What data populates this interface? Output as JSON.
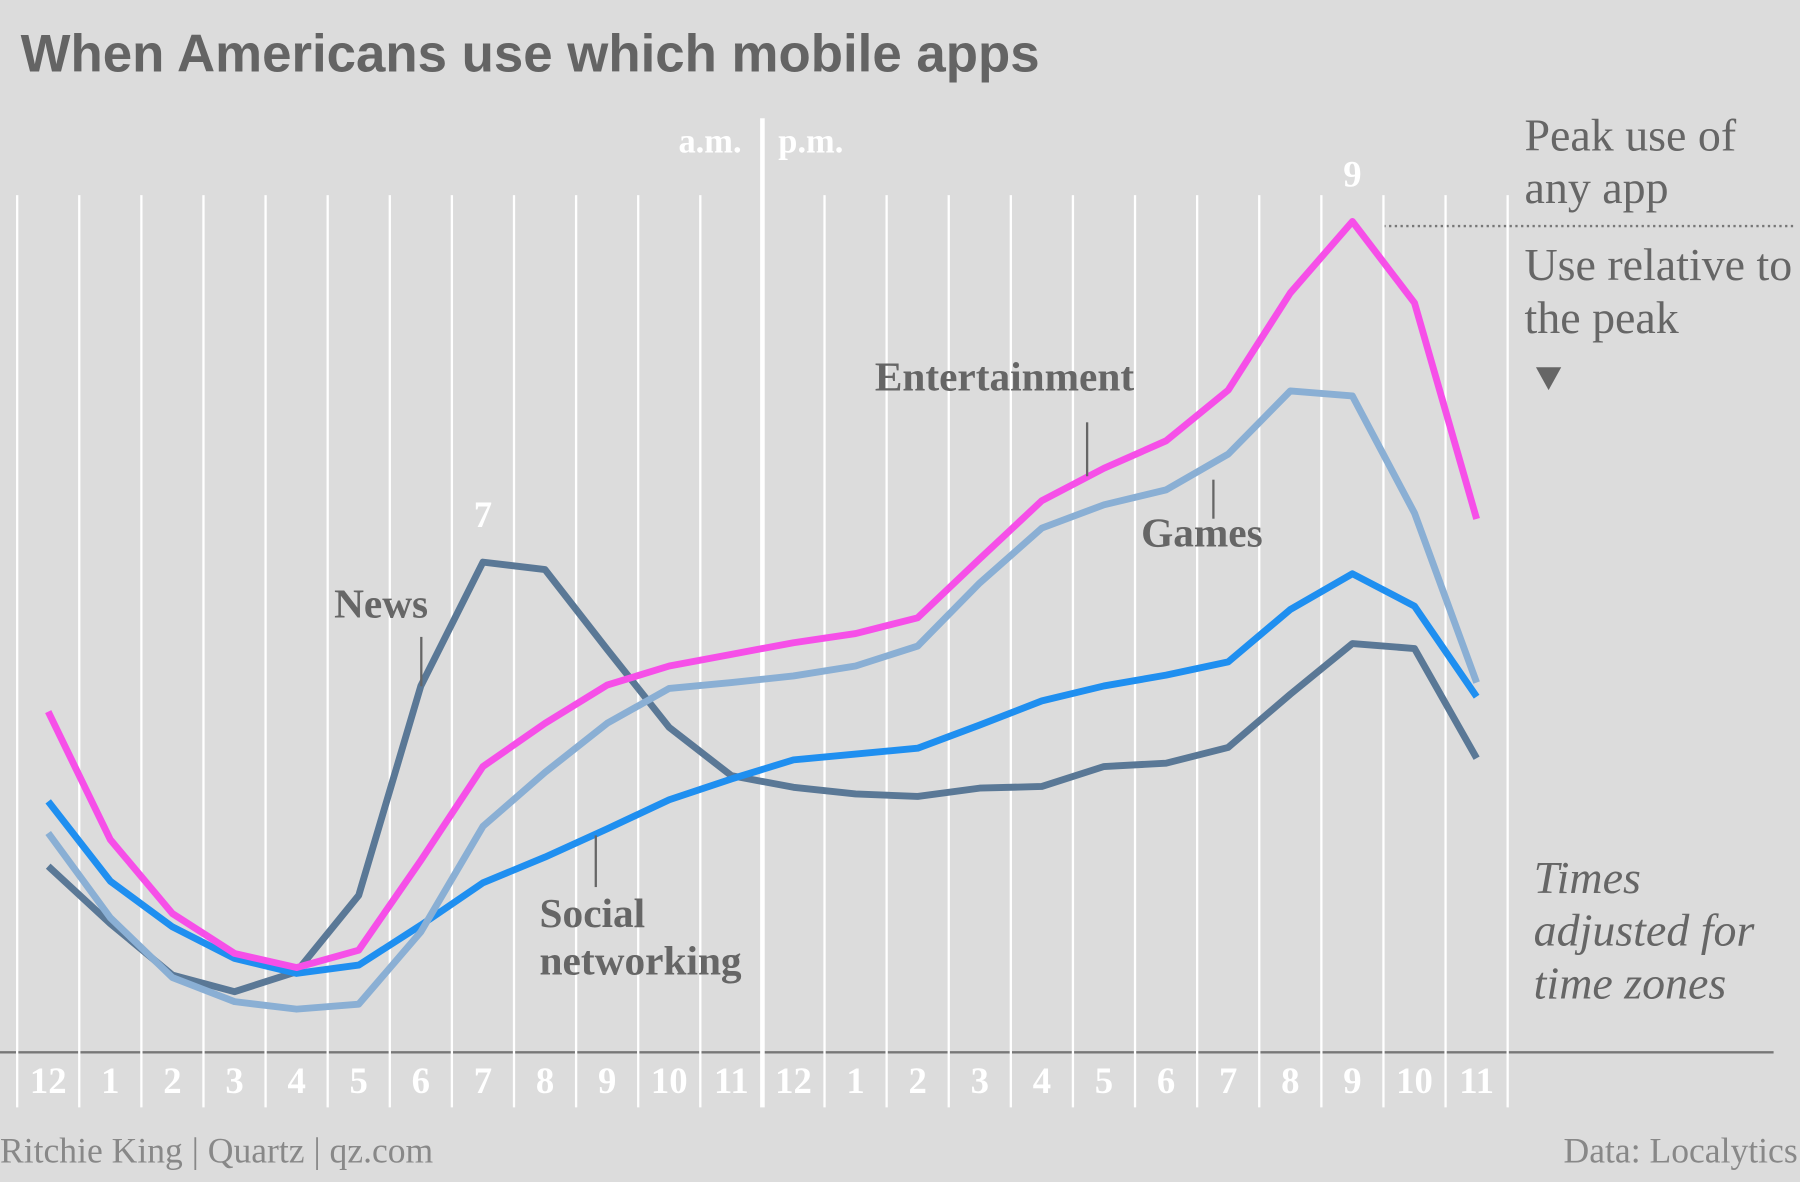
{
  "chart_data": {
    "type": "line",
    "title": "When Americans use which mobile apps",
    "am_label": "a.m.",
    "pm_label": "p.m.",
    "categories": [
      "12",
      "1",
      "2",
      "3",
      "4",
      "5",
      "6",
      "7",
      "8",
      "9",
      "10",
      "11",
      "12",
      "1",
      "2",
      "3",
      "4",
      "5",
      "6",
      "7",
      "8",
      "9",
      "10",
      "11"
    ],
    "ylim": [
      0,
      100
    ],
    "series": [
      {
        "name": "Entertainment",
        "color": "#f64fe8",
        "values": [
          41.0,
          25.6,
          16.7,
          11.9,
          10.2,
          12.3,
          23.1,
          34.4,
          39.6,
          44.2,
          46.5,
          47.9,
          49.3,
          50.4,
          52.3,
          59.4,
          66.4,
          70.3,
          73.6,
          79.7,
          91.4,
          100,
          90.2,
          64.2
        ],
        "peak_label": "9"
      },
      {
        "name": "Games",
        "color": "#8aafd4",
        "values": [
          26.4,
          16.2,
          9.0,
          6.1,
          5.2,
          5.8,
          14.5,
          27.2,
          33.7,
          39.6,
          43.8,
          44.5,
          45.3,
          46.5,
          48.9,
          56.5,
          63.1,
          65.9,
          67.7,
          72.0,
          79.6,
          79.0,
          64.9,
          44.5
        ]
      },
      {
        "name": "Social networking",
        "color": "#1f8ff0",
        "values": [
          30.2,
          20.6,
          15.1,
          11.3,
          9.5,
          10.5,
          15.3,
          20.4,
          23.5,
          26.9,
          30.4,
          32.9,
          35.2,
          35.9,
          36.6,
          39.4,
          42.3,
          44.1,
          45.4,
          47.0,
          53.3,
          57.6,
          53.7,
          42.8
        ]
      },
      {
        "name": "News",
        "color": "#5a7896",
        "values": [
          22.4,
          15.5,
          9.3,
          7.3,
          9.7,
          18.9,
          44.1,
          59.0,
          58.1,
          48.5,
          39.1,
          33.3,
          31.9,
          31.1,
          30.8,
          31.8,
          32.0,
          34.4,
          34.8,
          36.7,
          43.1,
          49.2,
          48.6,
          35.4
        ],
        "peak_label": "7"
      }
    ],
    "peak_note": "Peak use of any app",
    "relative_note": "Use relative to the peak",
    "time_note": "Times adjusted for time zones",
    "credit": "Ritchie King | Quartz | qz.com",
    "source": "Data: Localytics"
  }
}
